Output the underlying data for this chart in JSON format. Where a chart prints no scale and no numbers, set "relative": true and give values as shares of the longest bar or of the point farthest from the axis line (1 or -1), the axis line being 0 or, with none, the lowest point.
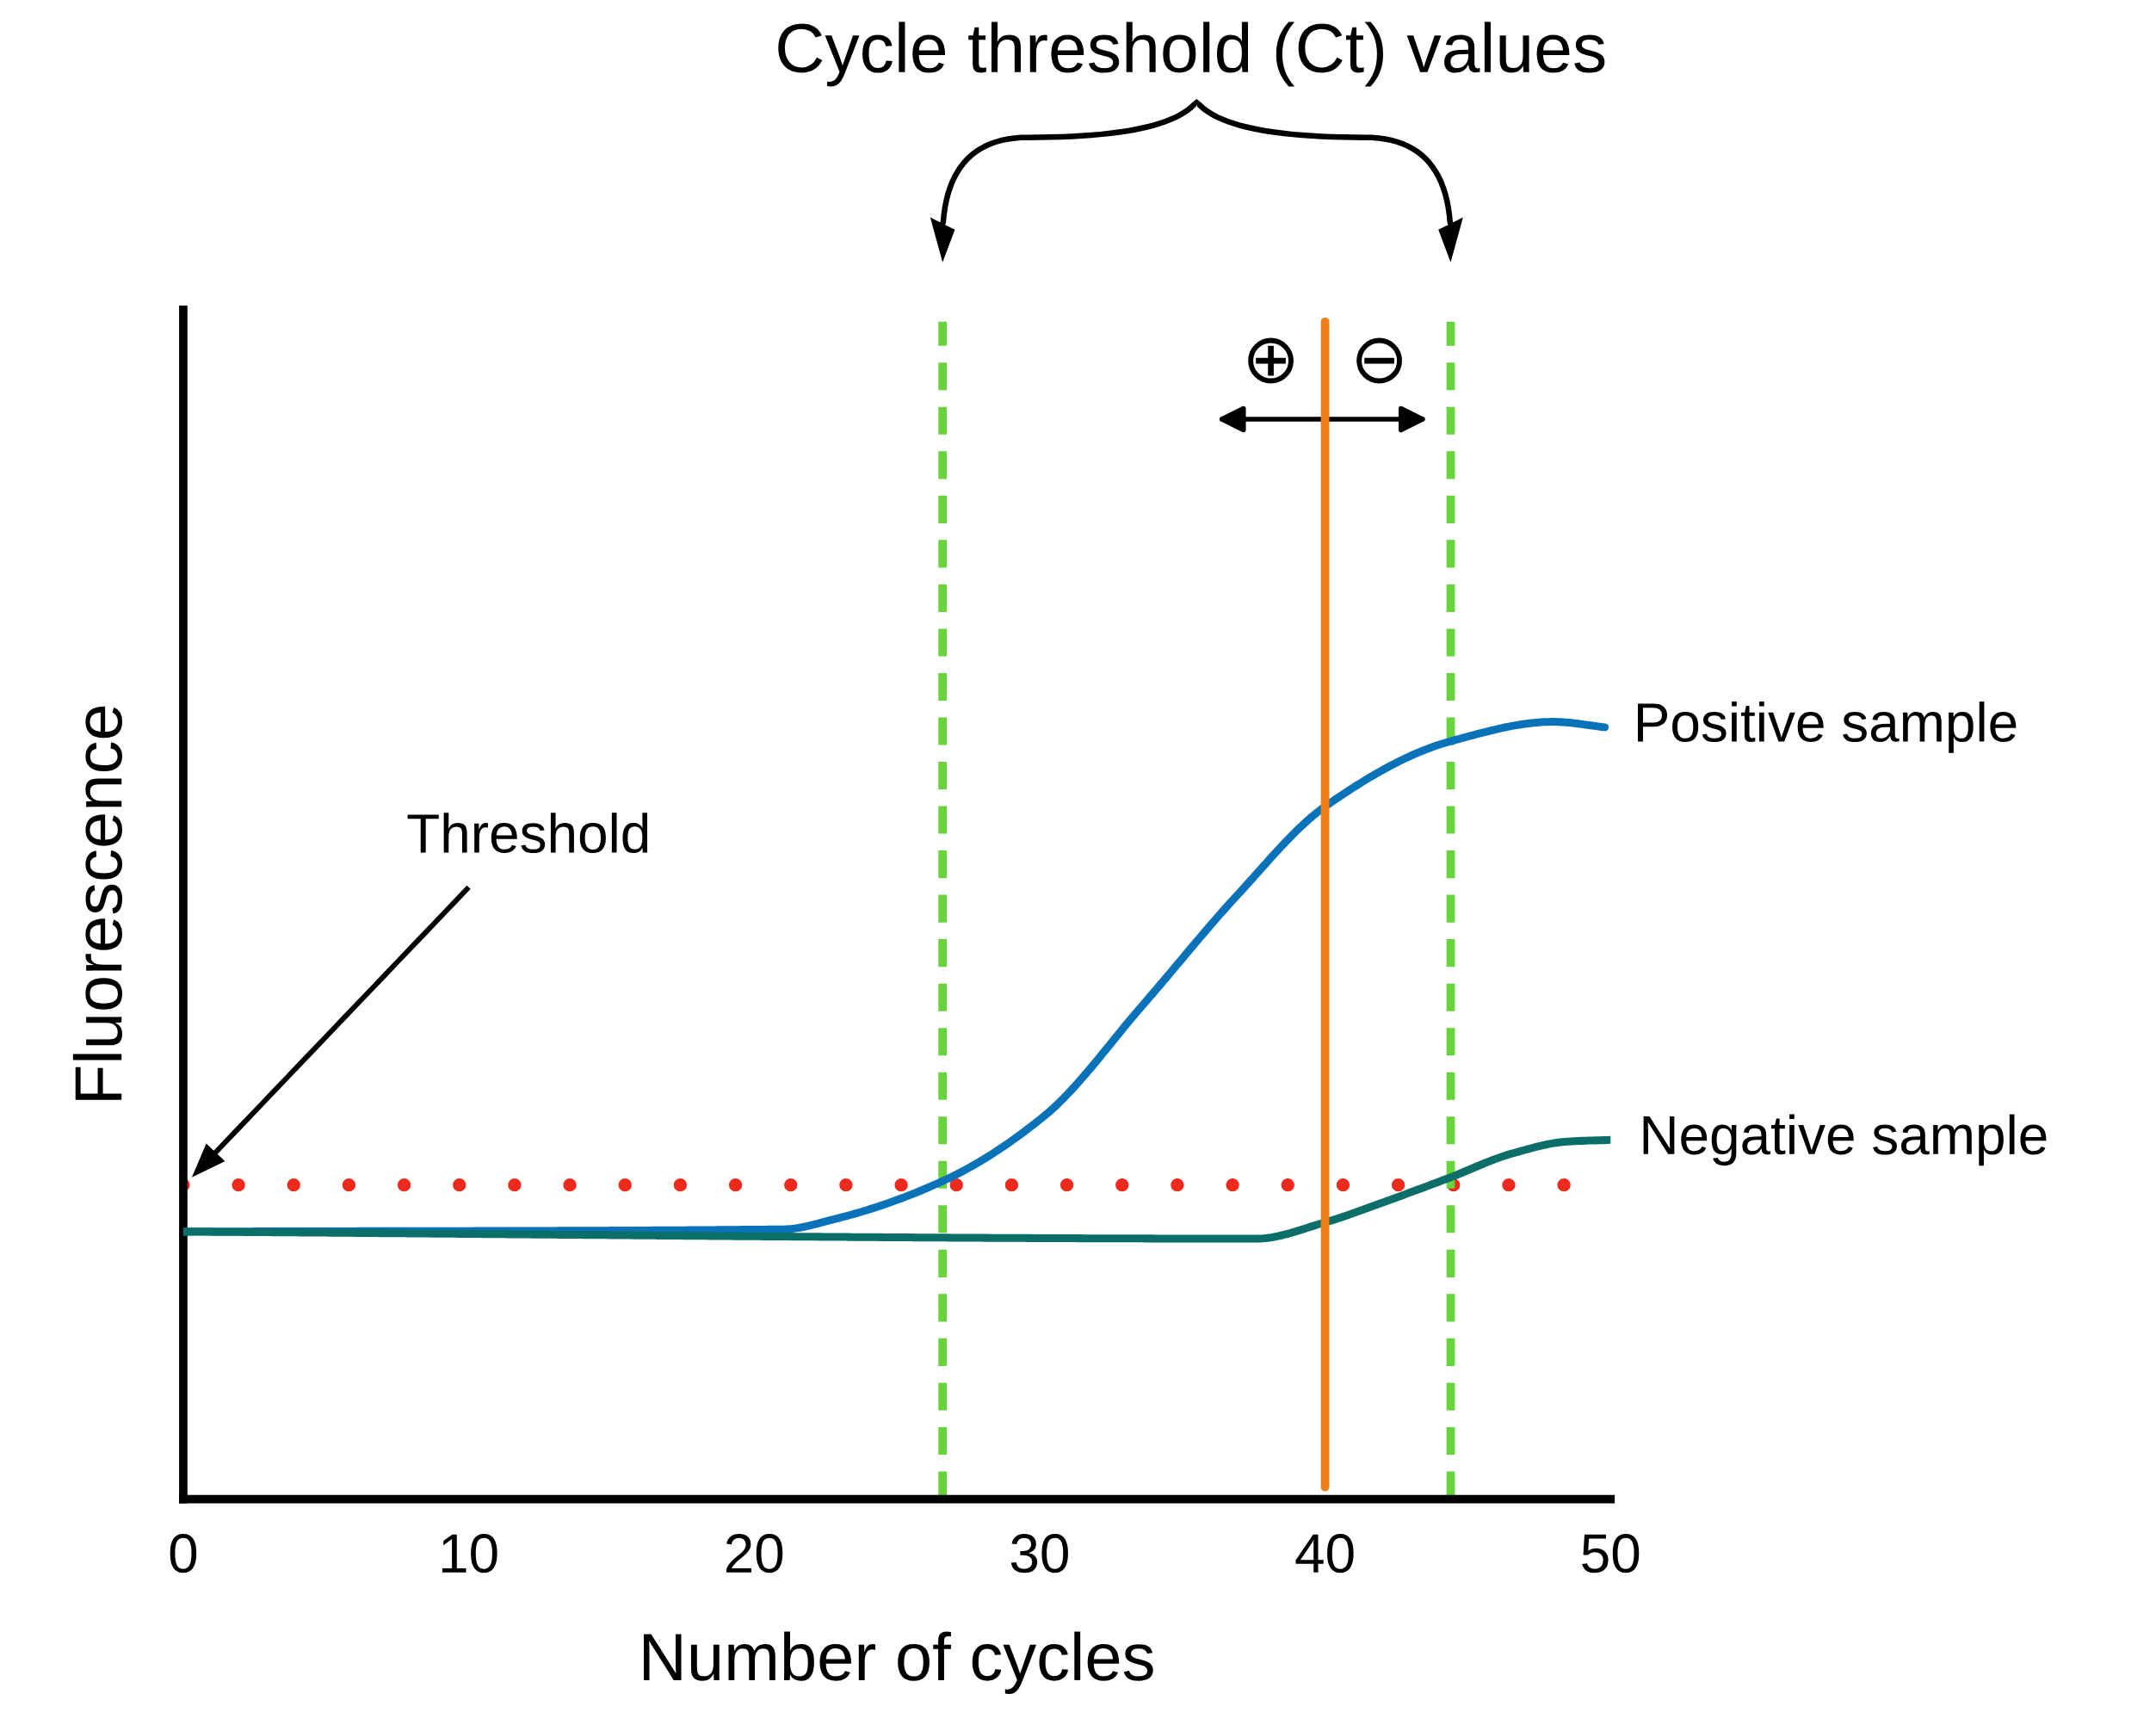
{
  "chart_data": {
    "type": "line",
    "title": "Cycle threshold (Ct) values",
    "xlabel": "Number of cycles",
    "ylabel": "Fluorescence",
    "relative": true,
    "xlim": [
      0,
      50
    ],
    "xticks": [
      0,
      10,
      20,
      30,
      40,
      50
    ],
    "grid": false,
    "legend": false,
    "marker": "none",
    "series": [
      {
        "name": "Positive sample",
        "color": "#0a72b8",
        "x": [
          0,
          21.0,
          22.9,
          26.6,
          30.2,
          33.6,
          36.9,
          40.0,
          44.4,
          48.0,
          49.8
        ],
        "values": [
          0.344,
          0.347,
          0.361,
          0.409,
          0.494,
          0.635,
          0.776,
          0.891,
          0.975,
          1.0,
          0.993
        ]
      },
      {
        "name": "Negative sample",
        "color": "#0c6e68",
        "x": [
          0,
          37.6,
          40.0,
          42.2,
          44.4,
          46.5,
          48.5,
          50
        ],
        "values": [
          0.344,
          0.335,
          0.356,
          0.384,
          0.414,
          0.444,
          0.46,
          0.462
        ]
      }
    ],
    "ref_lines": [
      {
        "axis": "y",
        "value": 0.404,
        "color": "#ee2a1c",
        "line_style": "dotted"
      },
      {
        "axis": "x",
        "value": 26.6,
        "color": "#66d43a",
        "line_style": "dashed"
      },
      {
        "axis": "x",
        "value": 44.4,
        "color": "#66d43a",
        "line_style": "dashed"
      },
      {
        "axis": "x",
        "value": 40,
        "color": "#f07f1a",
        "line_style": "solid"
      }
    ],
    "annotations": [
      "Threshold",
      "⊕",
      "⊖"
    ]
  }
}
